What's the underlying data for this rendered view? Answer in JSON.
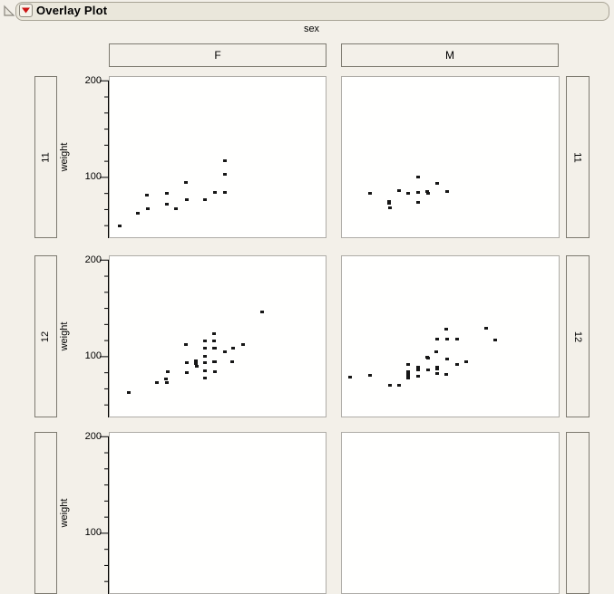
{
  "window": {
    "title": "Overlay Plot"
  },
  "titlebar": {
    "disclosure_icon": "outline-disclosure-triangle",
    "menu_icon": "red-triangle-menu"
  },
  "colors": {
    "background": "#f3f0e9",
    "pill_fill": "#eae7db",
    "pill_border": "#a8a395",
    "box_border": "#7d7a70",
    "panel_border": "#aeaca7",
    "panel_fill": "#fffffe",
    "accent_red": "#cc1414",
    "point": "#161616"
  },
  "facets": {
    "column_var": "sex",
    "columns": [
      "F",
      "M"
    ],
    "rows": [
      {
        "label": "11"
      },
      {
        "label": "12"
      },
      {
        "label": ""
      }
    ],
    "y_axis": {
      "label": "weight",
      "tick_labels": [
        "200",
        "100"
      ],
      "major_values": [
        200,
        100
      ],
      "minor_divisions": 6,
      "range": [
        38,
        204
      ]
    },
    "x_axis_hidden": true
  },
  "chart_data": [
    {
      "type": "scatter",
      "col": "F",
      "row": "11",
      "ylabel": "weight",
      "x_unit": "fraction of panel width (x axis cut off in view)",
      "points": [
        [
          0.044,
          50
        ],
        [
          0.132,
          63
        ],
        [
          0.174,
          82
        ],
        [
          0.176,
          68
        ],
        [
          0.264,
          84
        ],
        [
          0.265,
          73
        ],
        [
          0.306,
          68
        ],
        [
          0.354,
          95
        ],
        [
          0.356,
          77
        ],
        [
          0.439,
          77
        ],
        [
          0.488,
          85
        ],
        [
          0.532,
          118
        ],
        [
          0.533,
          104
        ],
        [
          0.533,
          85
        ]
      ]
    },
    {
      "type": "scatter",
      "col": "M",
      "row": "11",
      "ylabel": "weight",
      "x_unit": "fraction of panel width (x axis cut off in view)",
      "points": [
        [
          0.13,
          84
        ],
        [
          0.217,
          76
        ],
        [
          0.217,
          74
        ],
        [
          0.22,
          69
        ],
        [
          0.263,
          87
        ],
        [
          0.307,
          84
        ],
        [
          0.353,
          101
        ],
        [
          0.353,
          85
        ],
        [
          0.353,
          75
        ],
        [
          0.395,
          86
        ],
        [
          0.397,
          84
        ],
        [
          0.439,
          94
        ],
        [
          0.486,
          86
        ]
      ]
    },
    {
      "type": "scatter",
      "col": "F",
      "row": "12",
      "ylabel": "weight",
      "x_unit": "fraction of panel width (x axis cut off in view)",
      "points": [
        [
          0.09,
          63
        ],
        [
          0.22,
          74
        ],
        [
          0.262,
          77
        ],
        [
          0.264,
          74
        ],
        [
          0.27,
          85
        ],
        [
          0.354,
          113
        ],
        [
          0.357,
          94
        ],
        [
          0.358,
          84
        ],
        [
          0.4,
          96
        ],
        [
          0.4,
          93
        ],
        [
          0.402,
          91
        ],
        [
          0.439,
          117
        ],
        [
          0.441,
          109
        ],
        [
          0.439,
          101
        ],
        [
          0.441,
          94
        ],
        [
          0.441,
          86
        ],
        [
          0.441,
          78
        ],
        [
          0.483,
          124
        ],
        [
          0.485,
          117
        ],
        [
          0.483,
          109
        ],
        [
          0.487,
          109
        ],
        [
          0.485,
          95
        ],
        [
          0.488,
          95
        ],
        [
          0.486,
          85
        ],
        [
          0.532,
          106
        ],
        [
          0.573,
          109
        ],
        [
          0.569,
          95
        ],
        [
          0.617,
          113
        ],
        [
          0.704,
          147
        ]
      ]
    },
    {
      "type": "scatter",
      "col": "M",
      "row": "12",
      "ylabel": "weight",
      "x_unit": "fraction of panel width (x axis cut off in view)",
      "points": [
        [
          0.039,
          79
        ],
        [
          0.13,
          81
        ],
        [
          0.22,
          71
        ],
        [
          0.264,
          71
        ],
        [
          0.304,
          92
        ],
        [
          0.307,
          85
        ],
        [
          0.307,
          83
        ],
        [
          0.307,
          80
        ],
        [
          0.307,
          78
        ],
        [
          0.35,
          90
        ],
        [
          0.353,
          87
        ],
        [
          0.353,
          80
        ],
        [
          0.395,
          100
        ],
        [
          0.398,
          99
        ],
        [
          0.397,
          87
        ],
        [
          0.435,
          106
        ],
        [
          0.438,
          90
        ],
        [
          0.438,
          88
        ],
        [
          0.439,
          83
        ],
        [
          0.439,
          119
        ],
        [
          0.483,
          129
        ],
        [
          0.485,
          119
        ],
        [
          0.486,
          98
        ],
        [
          0.483,
          82
        ],
        [
          0.532,
          119
        ],
        [
          0.532,
          92
        ],
        [
          0.574,
          95
        ],
        [
          0.667,
          130
        ],
        [
          0.705,
          118
        ]
      ]
    }
  ]
}
